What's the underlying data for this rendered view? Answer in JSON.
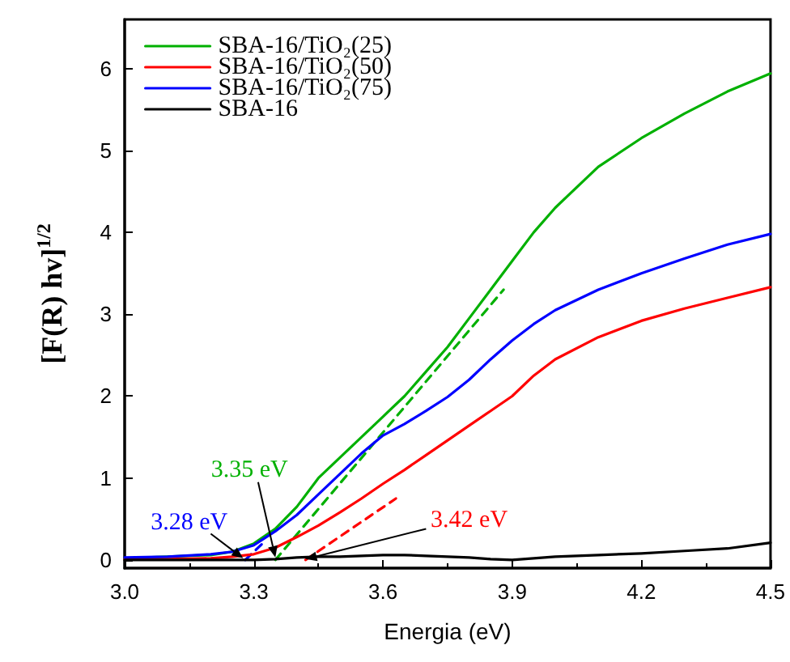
{
  "chart_data": {
    "type": "line",
    "xlabel": "Energia (eV)",
    "ylabel": "[F(R) hv]$^{1/2}$",
    "xlim": [
      3.0,
      4.5
    ],
    "xticks": [
      {
        "value": 3.0,
        "label": "3.0"
      },
      {
        "value": 3.3,
        "label": "3.3"
      },
      {
        "value": 3.6,
        "label": "3.6"
      },
      {
        "value": 3.9,
        "label": "3.9"
      },
      {
        "value": 4.2,
        "label": "4.2"
      },
      {
        "value": 4.5,
        "label": "4.5"
      }
    ],
    "ylim": [
      -0.1,
      6.6
    ],
    "yticks": [
      0,
      1,
      2,
      3,
      4,
      5,
      6
    ],
    "grid": false,
    "legend": "top left",
    "marker": "none",
    "line_style": "solid",
    "x": [
      3.0,
      3.1,
      3.2,
      3.25,
      3.3,
      3.35,
      3.4,
      3.45,
      3.5,
      3.55,
      3.6,
      3.65,
      3.7,
      3.75,
      3.8,
      3.85,
      3.9,
      3.95,
      4.0,
      4.1,
      4.2,
      4.3,
      4.4,
      4.5
    ],
    "series": [
      {
        "name": "SBA-16/TiO₂(25)",
        "color": "#00b000",
        "values": [
          0.02,
          0.04,
          0.06,
          0.1,
          0.2,
          0.38,
          0.65,
          1.0,
          1.25,
          1.5,
          1.75,
          2.0,
          2.3,
          2.6,
          2.95,
          3.3,
          3.65,
          4.0,
          4.3,
          4.8,
          5.15,
          5.45,
          5.72,
          5.94
        ]
      },
      {
        "name": "SBA-16/TiO₂(50)",
        "color": "#ff0000",
        "values": [
          0.01,
          0.01,
          0.02,
          0.04,
          0.07,
          0.15,
          0.28,
          0.42,
          0.58,
          0.75,
          0.93,
          1.1,
          1.28,
          1.46,
          1.64,
          1.82,
          2.0,
          2.25,
          2.45,
          2.72,
          2.92,
          3.07,
          3.2,
          3.33
        ]
      },
      {
        "name": "SBA-16/TiO₂(75)",
        "color": "#0000ff",
        "values": [
          0.03,
          0.04,
          0.07,
          0.1,
          0.18,
          0.35,
          0.55,
          0.8,
          1.05,
          1.3,
          1.52,
          1.66,
          1.82,
          1.99,
          2.2,
          2.45,
          2.68,
          2.88,
          3.05,
          3.3,
          3.5,
          3.68,
          3.85,
          3.98
        ]
      },
      {
        "name": "SBA-16",
        "color": "#000000",
        "values": [
          0.0,
          0.0,
          0.0,
          0.0,
          0.0,
          0.01,
          0.03,
          0.04,
          0.04,
          0.05,
          0.06,
          0.06,
          0.05,
          0.04,
          0.03,
          0.01,
          0.0,
          0.02,
          0.04,
          0.06,
          0.08,
          0.11,
          0.14,
          0.21
        ]
      },
      {
        "color": "#00b000",
        "line_style": "dashed",
        "x": [
          3.35,
          3.88
        ],
        "values": [
          0,
          3.3
        ]
      },
      {
        "color": "#ff0000",
        "line_style": "dashed",
        "x": [
          3.42,
          3.63
        ],
        "values": [
          0,
          0.75
        ]
      },
      {
        "color": "#0000ff",
        "line_style": "dashed",
        "x": [
          3.28,
          3.32
        ],
        "values": [
          0,
          0.2
        ]
      }
    ],
    "annotations": [
      {
        "text": "3.28 eV",
        "x": 3.28,
        "y": 0
      },
      {
        "text": "3.35 eV",
        "x": 3.35,
        "y": 0
      },
      {
        "text": "3.42 eV",
        "x": 3.42,
        "y": 0
      }
    ]
  }
}
